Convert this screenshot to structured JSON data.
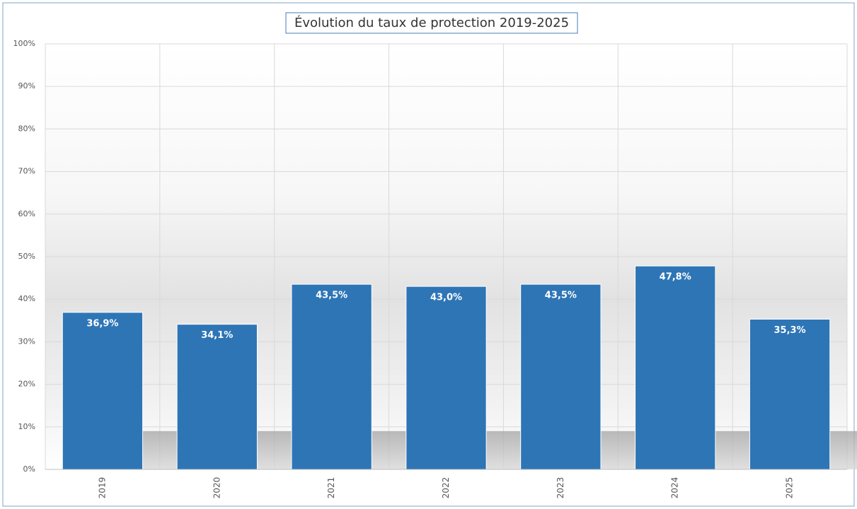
{
  "chart_data": {
    "type": "bar",
    "title": "Évolution du taux de protection 2019-2025",
    "categories": [
      "2019",
      "2020",
      "2021",
      "2022",
      "2023",
      "2024",
      "2025"
    ],
    "values": [
      36.9,
      34.1,
      43.5,
      43.0,
      43.5,
      47.8,
      35.3
    ],
    "value_labels": [
      "36,9%",
      "34,1%",
      "43,5%",
      "43,0%",
      "43,5%",
      "47,8%",
      "35,3%"
    ],
    "color": "#2e75b6",
    "ylim": [
      0,
      100
    ],
    "yticks": [
      {
        "value": 0,
        "label": "0%"
      },
      {
        "value": 10,
        "label": "10%"
      },
      {
        "value": 20,
        "label": "20%"
      },
      {
        "value": 30,
        "label": "30%"
      },
      {
        "value": 40,
        "label": "40%"
      },
      {
        "value": 50,
        "label": "50%"
      },
      {
        "value": 60,
        "label": "60%"
      },
      {
        "value": 70,
        "label": "70%"
      },
      {
        "value": 80,
        "label": "80%"
      },
      {
        "value": 90,
        "label": "90%"
      },
      {
        "value": 100,
        "label": "100%"
      }
    ],
    "grid": true
  }
}
